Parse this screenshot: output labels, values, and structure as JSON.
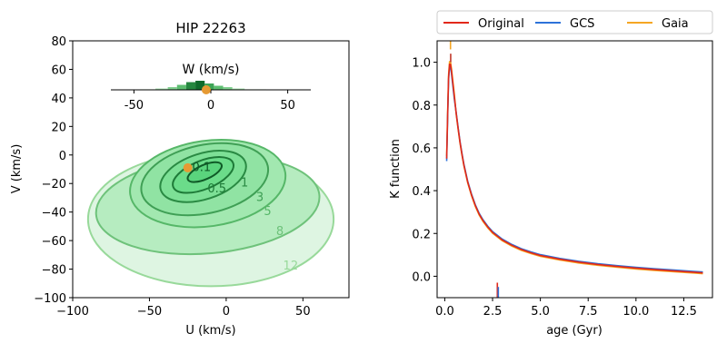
{
  "chart_data": [
    {
      "type": "contour",
      "title": "HIP 22263",
      "xlabel": "U (km/s)",
      "ylabel": "V (km/s)",
      "xlim": [
        -100,
        80
      ],
      "ylim": [
        -100,
        80
      ],
      "xticks": [
        -100,
        -50,
        0,
        50
      ],
      "yticks": [
        -100,
        -80,
        -60,
        -40,
        -20,
        0,
        20,
        40,
        60,
        80
      ],
      "grid": false,
      "contours": [
        {
          "level": "12",
          "center": [
            -10,
            -45
          ],
          "semi_axes": [
            80,
            47
          ],
          "angle": 0,
          "stroke": "#98d99a",
          "fill": "#def5e2"
        },
        {
          "level": "8",
          "center": [
            -12,
            -35
          ],
          "semi_axes": [
            73,
            34
          ],
          "angle": 5,
          "stroke": "#6ec27a",
          "fill": "#b6ecc0"
        },
        {
          "level": "5",
          "center": [
            -12,
            -20
          ],
          "semi_axes": [
            51,
            30
          ],
          "angle": 8,
          "stroke": "#56b768",
          "fill": "#a2e8b0"
        },
        {
          "level": "3",
          "center": [
            -14,
            -17
          ],
          "semi_axes": [
            42,
            24
          ],
          "angle": 12,
          "stroke": "#3f9f55",
          "fill": "#90e3a3"
        },
        {
          "level": "1",
          "center": [
            -15,
            -15
          ],
          "semi_axes": [
            29,
            16
          ],
          "angle": 18,
          "stroke": "#2a8a43",
          "fill": "#7de096"
        },
        {
          "level": "0.5",
          "center": [
            -15,
            -14
          ],
          "semi_axes": [
            21,
            10
          ],
          "angle": 22,
          "stroke": "#1e7a38",
          "fill": "#6bdc8a"
        },
        {
          "level": "0.1",
          "center": [
            -14,
            -12
          ],
          "semi_axes": [
            12,
            5
          ],
          "angle": 24,
          "stroke": "#0f5a27",
          "fill": "#5ad47d"
        }
      ],
      "contour_labels": [
        {
          "text": "0.1",
          "x": -16,
          "y": -8
        },
        {
          "text": "0.5",
          "x": -6,
          "y": -23
        },
        {
          "text": "1",
          "x": 12,
          "y": -19
        },
        {
          "text": "3",
          "x": 22,
          "y": -29
        },
        {
          "text": "5",
          "x": 27,
          "y": -39
        },
        {
          "text": "8",
          "x": 35,
          "y": -53
        },
        {
          "text": "12",
          "x": 42,
          "y": -77
        }
      ],
      "star_point": {
        "x": -25,
        "y": -9,
        "color": "#e69a33"
      },
      "inset": {
        "title": "W (km/s)",
        "xlim": [
          -65,
          65
        ],
        "ticks": [
          -50,
          0,
          50
        ],
        "histogram": [
          {
            "from": -52,
            "to": -46,
            "height": 0.03
          },
          {
            "from": -46,
            "to": -36,
            "height": 0.06
          },
          {
            "from": -36,
            "to": -28,
            "height": 0.15
          },
          {
            "from": -28,
            "to": -22,
            "height": 0.3
          },
          {
            "from": -22,
            "to": -16,
            "height": 0.55
          },
          {
            "from": -16,
            "to": -10,
            "height": 0.85
          },
          {
            "from": -10,
            "to": -4,
            "height": 1.0
          },
          {
            "from": -4,
            "to": 2,
            "height": 0.7
          },
          {
            "from": 2,
            "to": 8,
            "height": 0.45
          },
          {
            "from": 8,
            "to": 14,
            "height": 0.3
          },
          {
            "from": 14,
            "to": 22,
            "height": 0.15
          },
          {
            "from": 22,
            "to": 36,
            "height": 0.06
          }
        ],
        "star_w": -3,
        "star_color": "#e69a33"
      }
    },
    {
      "type": "line",
      "title": "",
      "xlabel": "age (Gyr)",
      "ylabel": "K function",
      "xlim": [
        -0.4,
        14.0
      ],
      "ylim": [
        -0.1,
        1.1
      ],
      "xticks": [
        0.0,
        2.5,
        5.0,
        7.5,
        10.0,
        12.5
      ],
      "yticks": [
        0.0,
        0.2,
        0.4,
        0.6,
        0.8,
        1.0
      ],
      "legend": {
        "position": "top-outside",
        "columns": 3
      },
      "series": [
        {
          "name": "Original",
          "color": "#e2281a",
          "offset": 0.0
        },
        {
          "name": "GCS",
          "color": "#2d72d9",
          "offset": 0.004
        },
        {
          "name": "Gaia",
          "color": "#f5a623",
          "offset": -0.004
        }
      ],
      "curve_x": [
        0.1,
        0.15,
        0.2,
        0.25,
        0.3,
        0.35,
        0.4,
        0.5,
        0.6,
        0.7,
        0.8,
        0.9,
        1.0,
        1.2,
        1.4,
        1.6,
        1.8,
        2.0,
        2.25,
        2.5,
        3.0,
        3.5,
        4.0,
        4.5,
        5.0,
        6.0,
        7.0,
        8.0,
        9.0,
        10.0,
        11.0,
        12.0,
        13.0,
        13.5
      ],
      "curve_y": [
        0.55,
        0.75,
        0.93,
        0.99,
        0.99,
        0.96,
        0.92,
        0.84,
        0.76,
        0.69,
        0.625,
        0.57,
        0.52,
        0.44,
        0.38,
        0.33,
        0.29,
        0.26,
        0.23,
        0.205,
        0.17,
        0.145,
        0.125,
        0.11,
        0.097,
        0.08,
        0.066,
        0.055,
        0.046,
        0.038,
        0.031,
        0.025,
        0.019,
        0.016
      ],
      "spikes": [
        {
          "x": 0.3,
          "y_from": 1.06,
          "y_to": 1.1,
          "color": "#f5a623"
        },
        {
          "x": 0.31,
          "y_from": 1.0,
          "y_to": 1.04,
          "color": "#c0392b"
        },
        {
          "x": 2.75,
          "y_from": -0.1,
          "y_to": -0.03,
          "color": "#e2281a"
        },
        {
          "x": 2.8,
          "y_from": -0.1,
          "y_to": -0.05,
          "color": "#2d72d9"
        }
      ]
    }
  ]
}
